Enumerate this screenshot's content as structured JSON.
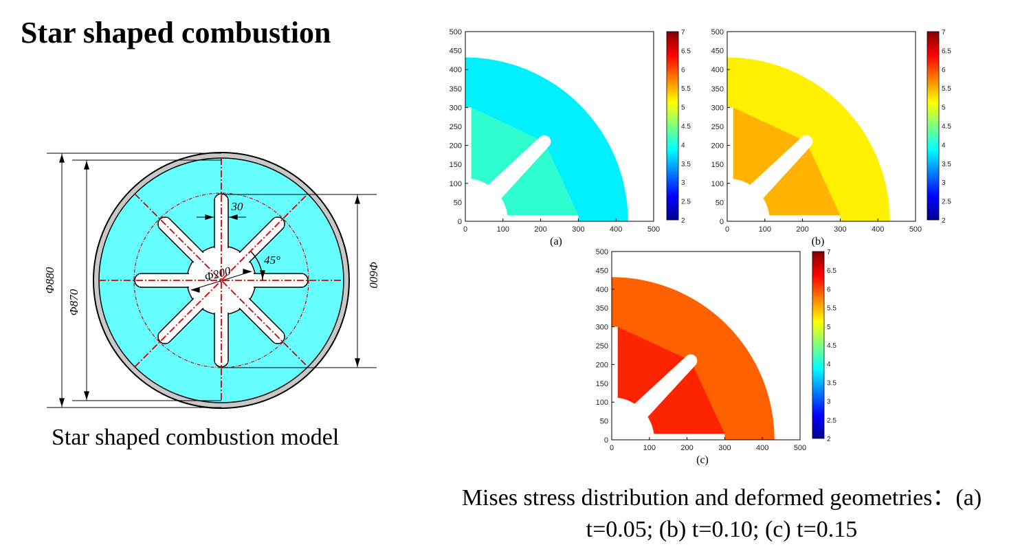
{
  "title": "Star shaped combustion",
  "model": {
    "caption": "Star shaped combustion model",
    "dims": {
      "outer": "Φ880",
      "inner": "Φ870",
      "circle600": "Φ600",
      "center": "Φ200",
      "slot": "30",
      "angle": "45°"
    },
    "colors": {
      "fill": "#66ffff",
      "casing": "#c8c8c8",
      "centerline": "#d40000"
    }
  },
  "figure": {
    "caption_line1": "Mises stress distribution and deformed geometries：(a)",
    "caption_line2": "t=0.05; (b) t=0.10; (c) t=0.15",
    "axis_ticks": [
      "0",
      "100",
      "200",
      "300",
      "400",
      "500"
    ],
    "colorbar_ticks": [
      "2",
      "2.5",
      "3",
      "3.5",
      "4",
      "4.5",
      "5",
      "5.5",
      "6",
      "6.5",
      "7"
    ],
    "colorbar_range": [
      2,
      7
    ],
    "panels": [
      {
        "label": "(a)",
        "t": 0.05,
        "level": 3.8
      },
      {
        "label": "(b)",
        "t": 0.1,
        "level": 5.2
      },
      {
        "label": "(c)",
        "t": 0.15,
        "level": 5.9
      }
    ]
  }
}
